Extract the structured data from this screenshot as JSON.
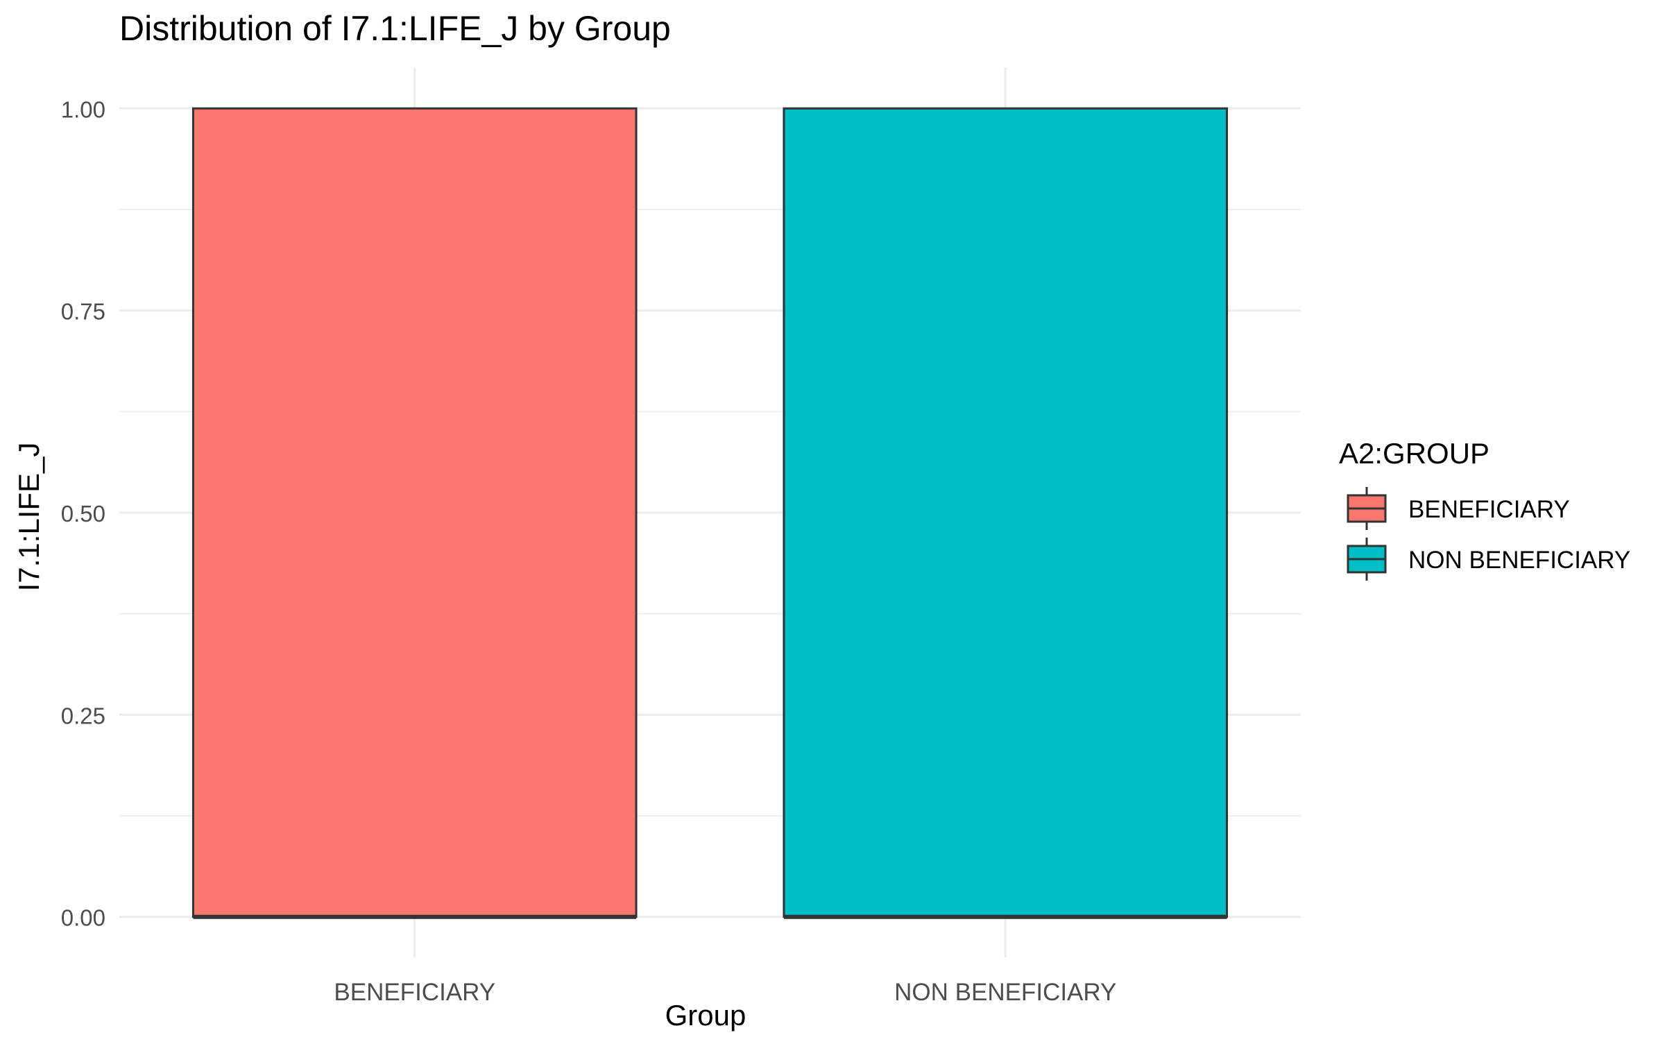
{
  "chart_data": {
    "type": "boxplot",
    "title": "Distribution of I7.1:LIFE_J by Group",
    "xlabel": "Group",
    "ylabel": "I7.1:LIFE_J",
    "categories": [
      "BENEFICIARY",
      "NON BENEFICIARY"
    ],
    "boxes": [
      {
        "category": "BENEFICIARY",
        "min": 0,
        "q1": 0,
        "median": 0,
        "q3": 1,
        "max": 1,
        "fill": "#F8766D"
      },
      {
        "category": "NON BENEFICIARY",
        "min": 0,
        "q1": 0,
        "median": 0,
        "q3": 1,
        "max": 1,
        "fill": "#00BFC4"
      }
    ],
    "ylim": [
      -0.05,
      1.05
    ],
    "yticks": [
      0,
      0.25,
      0.5,
      0.75,
      1
    ],
    "yticklabels": [
      "0.00",
      "0.25",
      "0.50",
      "0.75",
      "1.00"
    ],
    "grid": true,
    "legend": {
      "title": "A2:GROUP",
      "position": "right",
      "entries": [
        {
          "label": "BENEFICIARY",
          "color": "#F8766D"
        },
        {
          "label": "NON BENEFICIARY",
          "color": "#00BFC4"
        }
      ]
    },
    "colors": {
      "grid": "#EBEBEB",
      "outline": "#333333",
      "tick_text": "#4D4D4D",
      "title_text": "#000000"
    }
  }
}
